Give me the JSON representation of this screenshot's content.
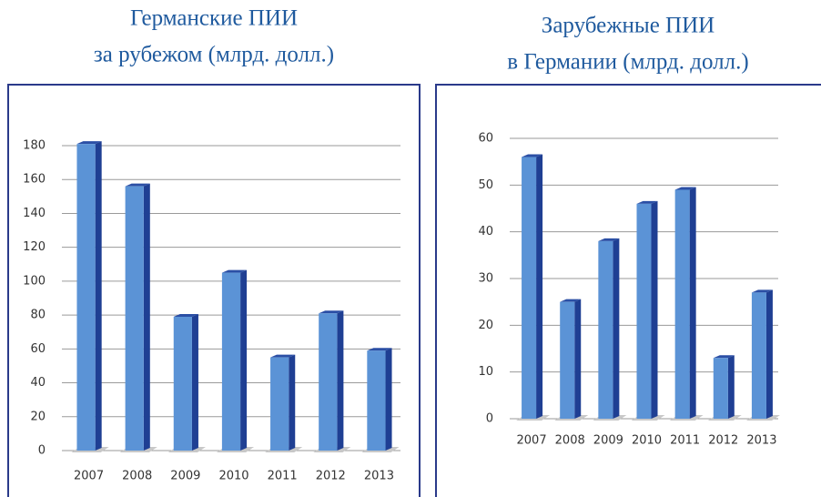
{
  "chart_data": [
    {
      "type": "bar",
      "title": [
        "Германские ПИИ",
        "за рубежом (млрд. долл.)"
      ],
      "categories": [
        "2007",
        "2008",
        "2009",
        "2010",
        "2011",
        "2012",
        "2013"
      ],
      "values": [
        181,
        156,
        79,
        105,
        55,
        81,
        59
      ],
      "color": "#5b93d6",
      "ylim": [
        0,
        180
      ],
      "yticks": [
        0,
        20,
        40,
        60,
        80,
        100,
        120,
        140,
        160,
        180
      ],
      "grid": true
    },
    {
      "type": "bar",
      "title": [
        "Зарубежные ПИИ",
        "в Германии (млрд. долл.)"
      ],
      "categories": [
        "2007",
        "2008",
        "2009",
        "2010",
        "2011",
        "2012",
        "2013"
      ],
      "values": [
        56,
        25,
        38,
        46,
        49,
        13,
        27
      ],
      "color": "#5b93d6",
      "ylim": [
        0,
        60
      ],
      "yticks": [
        0,
        10,
        20,
        30,
        40,
        50,
        60
      ],
      "grid": true
    }
  ]
}
